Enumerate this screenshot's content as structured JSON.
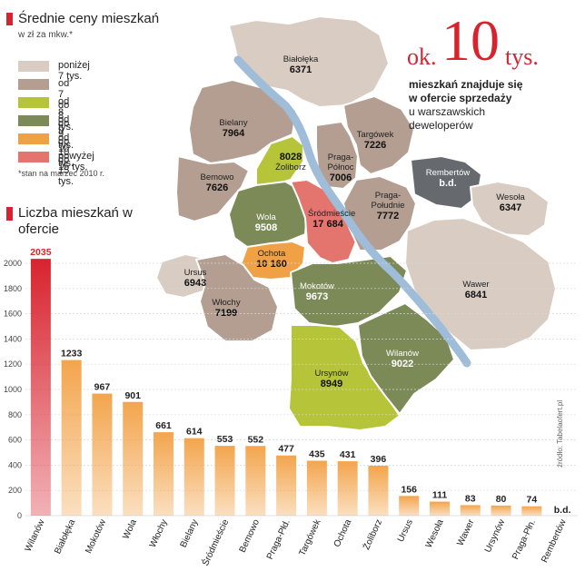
{
  "price_panel": {
    "title": "Średnie ceny mieszkań",
    "subtitle": "w zł za mkw.*",
    "footnote": "*stan na marzec 2010 r.",
    "legend": [
      {
        "label": "poniżej 7 tys.",
        "color": "#d9ccc3"
      },
      {
        "label": "od 7 do 8 tys.",
        "color": "#b39e91"
      },
      {
        "label": "od 8 do 9 tys.",
        "color": "#b6c43a"
      },
      {
        "label": "od 9 do 10 tys.",
        "color": "#7b8a56"
      },
      {
        "label": "od 10 do 15 tys.",
        "color": "#f0a145"
      },
      {
        "label": "powyżej 15 tys.",
        "color": "#e3756e"
      }
    ]
  },
  "headline": {
    "ok": "ok.",
    "number": "10",
    "unit": "tys.",
    "line1": "mieszkań znajduje się",
    "line2": "w ofercie sprzedaży",
    "line3": "u warszawskich",
    "line4": "deweloperów"
  },
  "map": {
    "river_color": "#9fbcd9",
    "districts": [
      {
        "name": "Białołęka",
        "value": "6371",
        "color": "#d9ccc3"
      },
      {
        "name": "Bielany",
        "value": "7964",
        "color": "#b39e91"
      },
      {
        "name": "Bemowo",
        "value": "7626",
        "color": "#b39e91"
      },
      {
        "name": "Żoliborz",
        "value": "8028",
        "color": "#b6c43a"
      },
      {
        "name": "Targówek",
        "value": "7226",
        "color": "#b39e91"
      },
      {
        "name": "Praga-Północ",
        "value": "7006",
        "color": "#b39e91"
      },
      {
        "name": "Rembertów",
        "value": "b.d.",
        "color": "#666a6e"
      },
      {
        "name": "Wola",
        "value": "9508",
        "color": "#7b8a56"
      },
      {
        "name": "Śródmieście",
        "value": "17 684",
        "color": "#e3756e"
      },
      {
        "name": "Praga-Południe",
        "value": "7772",
        "color": "#b39e91"
      },
      {
        "name": "Wesoła",
        "value": "6347",
        "color": "#d9ccc3"
      },
      {
        "name": "Ursus",
        "value": "6943",
        "color": "#d9ccc3"
      },
      {
        "name": "Ochota",
        "value": "10 160",
        "color": "#f0a145"
      },
      {
        "name": "Włochy",
        "value": "7199",
        "color": "#b39e91"
      },
      {
        "name": "Mokotów",
        "value": "9673",
        "color": "#7b8a56"
      },
      {
        "name": "Wawer",
        "value": "6841",
        "color": "#d9ccc3"
      },
      {
        "name": "Ursynów",
        "value": "8949",
        "color": "#b6c43a"
      },
      {
        "name": "Wilanów",
        "value": "9022",
        "color": "#7b8a56"
      }
    ]
  },
  "source": "źródło: Tabelaofert.pl",
  "chart_data": {
    "type": "bar",
    "title": "Liczba mieszkań w ofercie",
    "categories": [
      "Wilanów",
      "Białołęka",
      "Mokotów",
      "Wola",
      "Włochy",
      "Bielany",
      "Śródmieście",
      "Bemowo",
      "Praga-Płd.",
      "Targówek",
      "Ochota",
      "Żoliborz",
      "Ursus",
      "Wesoła",
      "Wawer",
      "Ursynów",
      "Praga-Płn.",
      "Rembertów"
    ],
    "values": [
      2035,
      1233,
      967,
      901,
      661,
      614,
      553,
      552,
      477,
      435,
      431,
      396,
      156,
      111,
      83,
      80,
      74,
      null
    ],
    "value_labels": [
      "2035",
      "1233",
      "967",
      "901",
      "661",
      "614",
      "553",
      "552",
      "477",
      "435",
      "431",
      "396",
      "156",
      "111",
      "83",
      "80",
      "74",
      "b.d."
    ],
    "yticks": [
      "0",
      "200",
      "400",
      "600",
      "800",
      "1000",
      "1200",
      "1400",
      "1600",
      "1800",
      "2000"
    ],
    "ylim": [
      0,
      2000
    ],
    "grid": true,
    "highlight_color": "#d8232e",
    "bar_color": "#f3a54d"
  }
}
